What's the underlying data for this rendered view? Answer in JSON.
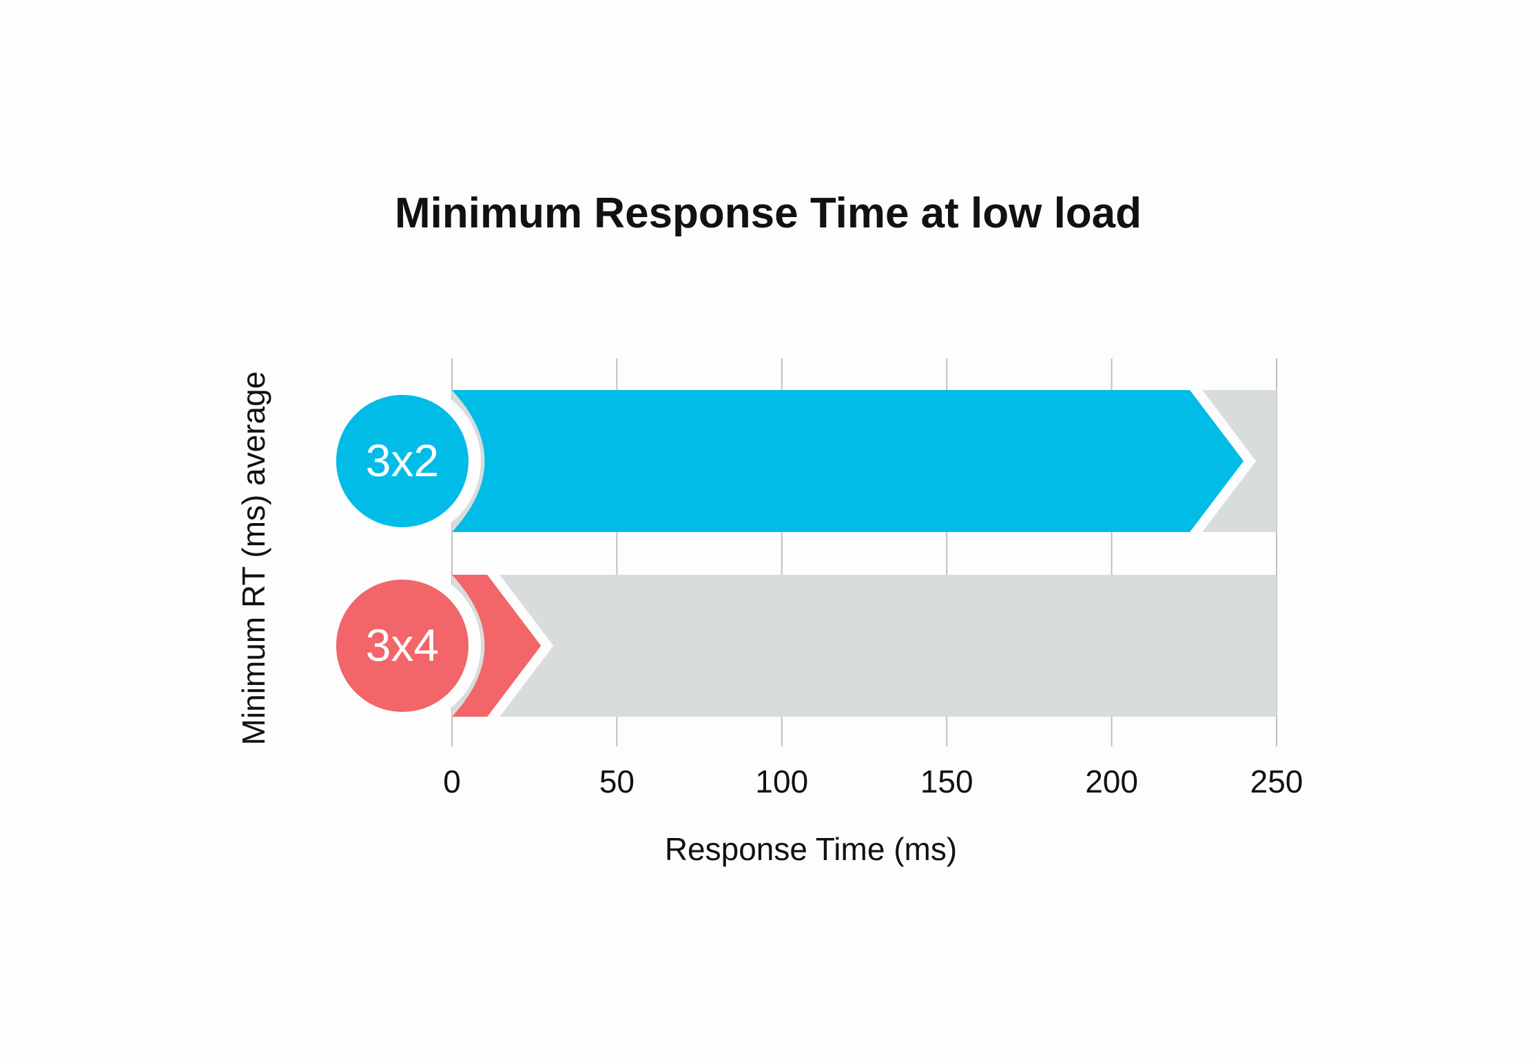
{
  "chart_data": {
    "type": "bar",
    "title": "Minimum Response Time at low load",
    "xlabel": "Response Time (ms)",
    "ylabel": "Minimum RT (ms) average",
    "xlim": [
      0,
      250
    ],
    "xticks": [
      0,
      50,
      100,
      150,
      200,
      250
    ],
    "grid": true,
    "orientation": "horizontal",
    "categories": [
      "3x2",
      "3x4"
    ],
    "values": [
      240,
      27
    ],
    "colors": {
      "3x2": "#00bce6",
      "3x4": "#f26568",
      "track": "#d9dcdd",
      "grid": "#bfbfbf",
      "text": "#111111"
    }
  }
}
